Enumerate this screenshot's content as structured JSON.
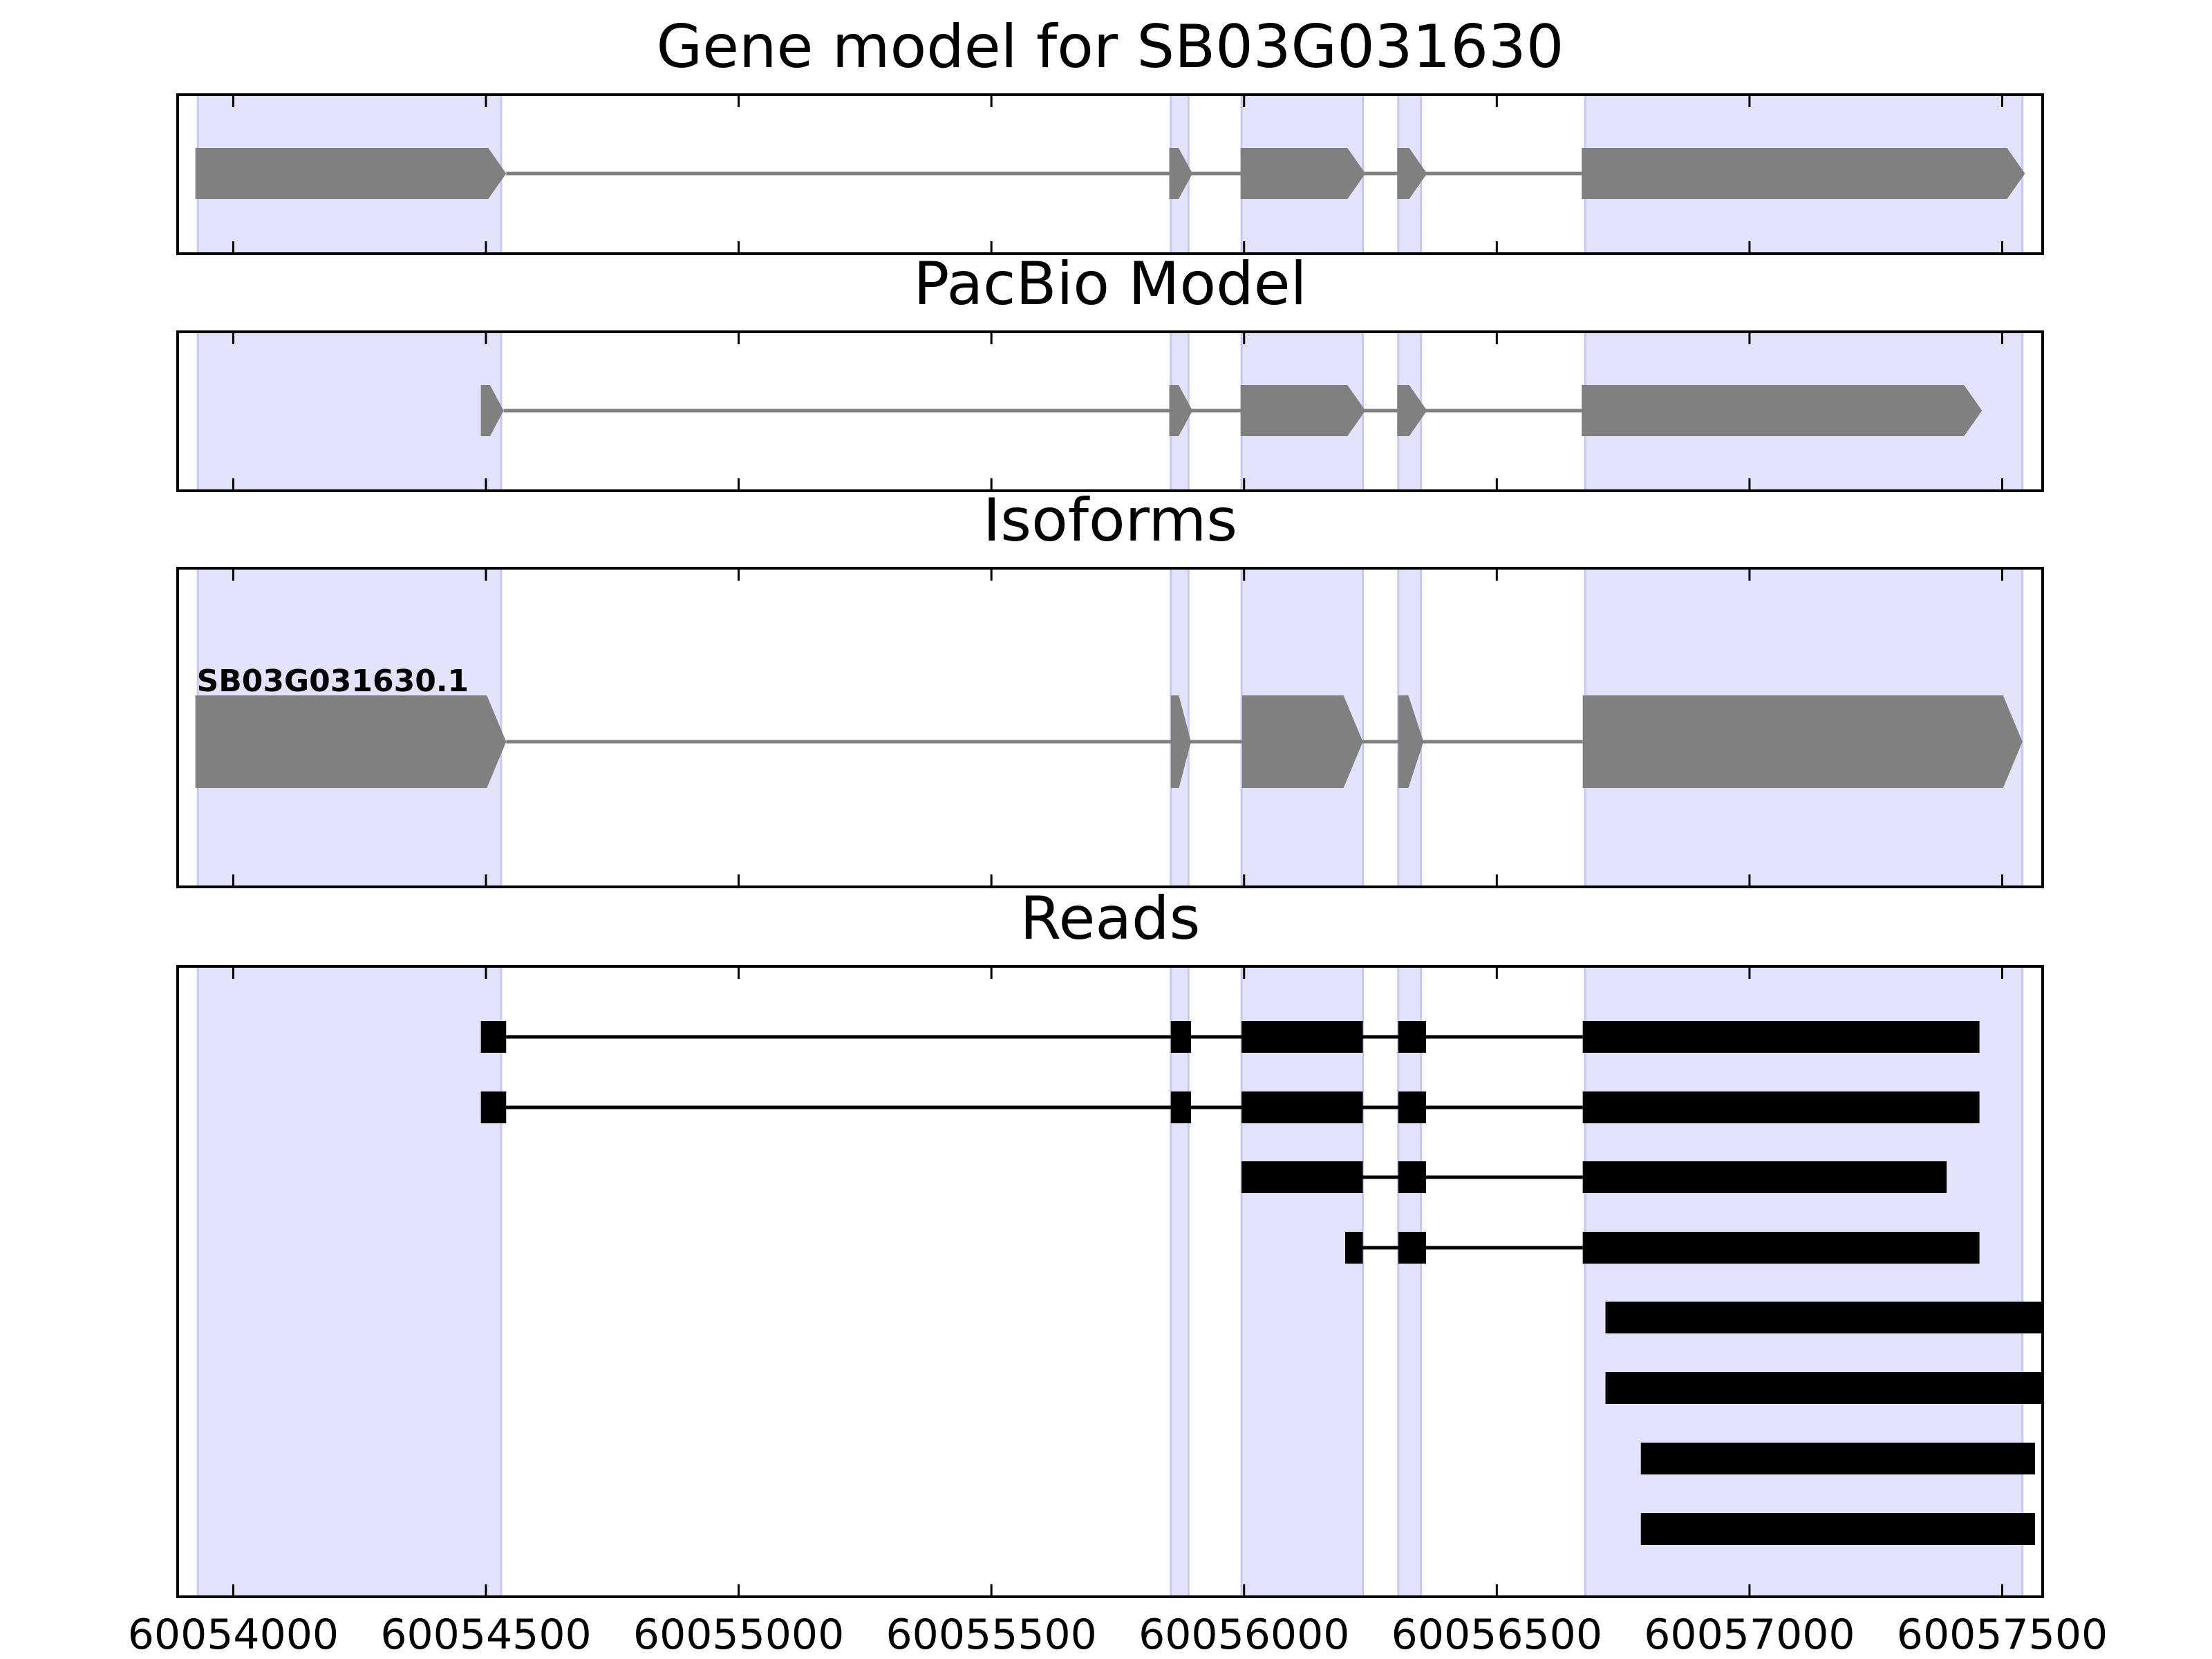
{
  "chart_data": {
    "type": "gene-track",
    "x_ticks": [
      "60054000",
      "60054500",
      "60055000",
      "60055500",
      "60056000",
      "60056500",
      "60057000",
      "60057500"
    ],
    "x_tick_values": [
      60054000,
      60054500,
      60055000,
      60055500,
      60056000,
      60056500,
      60057000,
      60057500
    ],
    "xlim": [
      60053890,
      60057580
    ],
    "colors": {
      "highlight": "#e2e2fc",
      "highlight_edge": "#c8c8f0",
      "model": "#808080",
      "read": "#000000",
      "axis": "#000000"
    },
    "highlight_regions": [
      [
        60053930,
        60054530
      ],
      [
        60055855,
        60055890
      ],
      [
        60055995,
        60056235
      ],
      [
        60056305,
        60056350
      ],
      [
        60056675,
        60057540
      ]
    ],
    "panels": [
      {
        "id": "gene-model",
        "title": "Gene model for SB03G031630",
        "style": "arrow",
        "rows": [
          {
            "label": "",
            "exons": [
              [
                60053925,
                60054540
              ],
              [
                60055852,
                60055898
              ],
              [
                60055993,
                60056240
              ],
              [
                60056303,
                60056362
              ],
              [
                60056668,
                60057545
              ]
            ]
          }
        ]
      },
      {
        "id": "pacbio-model",
        "title": "PacBio Model",
        "style": "arrow",
        "rows": [
          {
            "label": "",
            "exons": [
              [
                60054490,
                60054535
              ],
              [
                60055852,
                60055898
              ],
              [
                60055993,
                60056240
              ],
              [
                60056303,
                60056362
              ],
              [
                60056668,
                60057460
              ]
            ]
          }
        ]
      },
      {
        "id": "isoforms",
        "title": "Isoforms",
        "style": "arrow",
        "rows": [
          {
            "label": "SB03G031630.1",
            "exons": [
              [
                60053925,
                60054540
              ],
              [
                60055855,
                60055895
              ],
              [
                60055996,
                60056235
              ],
              [
                60056305,
                60056355
              ],
              [
                60056670,
                60057540
              ]
            ]
          }
        ]
      },
      {
        "id": "reads",
        "title": "Reads",
        "style": "block",
        "rows": [
          {
            "exons": [
              [
                60054490,
                60054540
              ],
              [
                60055855,
                60055895
              ],
              [
                60055995,
                60056235
              ],
              [
                60056305,
                60056360
              ],
              [
                60056670,
                60057455
              ]
            ]
          },
          {
            "exons": [
              [
                60054490,
                60054540
              ],
              [
                60055855,
                60055895
              ],
              [
                60055995,
                60056235
              ],
              [
                60056305,
                60056360
              ],
              [
                60056670,
                60057455
              ]
            ]
          },
          {
            "exons": [
              [
                60055995,
                60056235
              ],
              [
                60056305,
                60056360
              ],
              [
                60056670,
                60057390
              ]
            ]
          },
          {
            "exons": [
              [
                60056200,
                60056235
              ],
              [
                60056305,
                60056360
              ],
              [
                60056670,
                60057455
              ]
            ]
          },
          {
            "exons": [
              [
                60056715,
                60057580
              ]
            ]
          },
          {
            "exons": [
              [
                60056715,
                60057580
              ]
            ]
          },
          {
            "exons": [
              [
                60056785,
                60057565
              ]
            ]
          },
          {
            "exons": [
              [
                60056785,
                60057565
              ]
            ]
          }
        ]
      }
    ]
  }
}
